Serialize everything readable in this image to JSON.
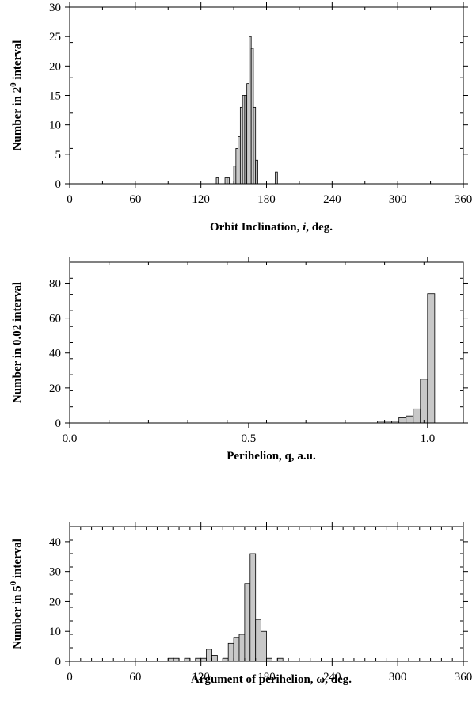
{
  "chart_data": [
    {
      "type": "bar",
      "xlabel_parts": [
        {
          "text": "Orbit Inclination, ",
          "italic": false
        },
        {
          "text": "i",
          "italic": true
        },
        {
          "text": ", deg.",
          "italic": false
        }
      ],
      "ylabel_parts": [
        {
          "text": "Number in 2",
          "sup": false
        },
        {
          "text": "0",
          "sup": true
        },
        {
          "text": " interval",
          "sup": false
        }
      ],
      "xlim": [
        0,
        360
      ],
      "ylim": [
        0,
        30
      ],
      "bin_width": 2,
      "xticks": [
        0,
        60,
        120,
        180,
        240,
        300,
        360
      ],
      "xtick_labels": [
        "0",
        "60",
        "120",
        "180",
        "240",
        "300",
        "360"
      ],
      "yticks": [
        0,
        5,
        10,
        15,
        20,
        25,
        30
      ],
      "ytick_labels": [
        "0",
        "5",
        "10",
        "15",
        "20",
        "25",
        "30"
      ],
      "bins": [
        {
          "x": 134,
          "value": 1
        },
        {
          "x": 142,
          "value": 1
        },
        {
          "x": 144,
          "value": 1
        },
        {
          "x": 150,
          "value": 3
        },
        {
          "x": 152,
          "value": 6
        },
        {
          "x": 154,
          "value": 8
        },
        {
          "x": 156,
          "value": 13
        },
        {
          "x": 158,
          "value": 15
        },
        {
          "x": 160,
          "value": 15
        },
        {
          "x": 162,
          "value": 17
        },
        {
          "x": 164,
          "value": 25
        },
        {
          "x": 166,
          "value": 23
        },
        {
          "x": 168,
          "value": 13
        },
        {
          "x": 170,
          "value": 4
        },
        {
          "x": 188,
          "value": 2
        }
      ]
    },
    {
      "type": "bar",
      "xlabel_parts": [
        {
          "text": "Perihelion, q, a.u.",
          "italic": false
        }
      ],
      "ylabel_parts": [
        {
          "text": "Number in 0.02 interval",
          "sup": false
        }
      ],
      "xlim": [
        0,
        1.1
      ],
      "ylim": [
        0,
        92
      ],
      "bin_width": 0.02,
      "xticks": [
        0,
        0.5,
        1.0
      ],
      "xtick_labels": [
        "0.0",
        "0.5",
        "1.0"
      ],
      "yticks": [
        0,
        20,
        40,
        60,
        80
      ],
      "ytick_labels": [
        "0",
        "20",
        "40",
        "60",
        "80"
      ],
      "bins": [
        {
          "x": 0.86,
          "value": 1
        },
        {
          "x": 0.88,
          "value": 1
        },
        {
          "x": 0.9,
          "value": 1
        },
        {
          "x": 0.92,
          "value": 3
        },
        {
          "x": 0.94,
          "value": 4
        },
        {
          "x": 0.96,
          "value": 8
        },
        {
          "x": 0.98,
          "value": 25
        },
        {
          "x": 1.0,
          "value": 74
        }
      ]
    },
    {
      "type": "bar",
      "xlabel_parts": [
        {
          "text": "Argument of perihelion, ω, deg.",
          "italic": false
        }
      ],
      "ylabel_parts": [
        {
          "text": "Number in 5",
          "sup": false
        },
        {
          "text": "0",
          "sup": true
        },
        {
          "text": " interval",
          "sup": false
        }
      ],
      "xlim": [
        0,
        360
      ],
      "ylim": [
        0,
        45
      ],
      "bin_width": 5,
      "xticks": [
        0,
        60,
        120,
        180,
        240,
        300,
        360
      ],
      "xtick_labels": [
        "0",
        "60",
        "120",
        "180",
        "240",
        "300",
        "360"
      ],
      "yticks": [
        0,
        10,
        20,
        30,
        40
      ],
      "ytick_labels": [
        "0",
        "10",
        "20",
        "30",
        "40"
      ],
      "bins": [
        {
          "x": 90,
          "value": 1
        },
        {
          "x": 95,
          "value": 1
        },
        {
          "x": 100,
          "value": 0
        },
        {
          "x": 105,
          "value": 1
        },
        {
          "x": 110,
          "value": 0
        },
        {
          "x": 115,
          "value": 1
        },
        {
          "x": 120,
          "value": 1
        },
        {
          "x": 125,
          "value": 4
        },
        {
          "x": 130,
          "value": 2
        },
        {
          "x": 135,
          "value": 0
        },
        {
          "x": 140,
          "value": 1
        },
        {
          "x": 145,
          "value": 6
        },
        {
          "x": 150,
          "value": 8
        },
        {
          "x": 155,
          "value": 9
        },
        {
          "x": 160,
          "value": 26
        },
        {
          "x": 165,
          "value": 36
        },
        {
          "x": 170,
          "value": 14
        },
        {
          "x": 175,
          "value": 10
        },
        {
          "x": 180,
          "value": 1
        },
        {
          "x": 185,
          "value": 0
        },
        {
          "x": 190,
          "value": 1
        }
      ]
    }
  ]
}
